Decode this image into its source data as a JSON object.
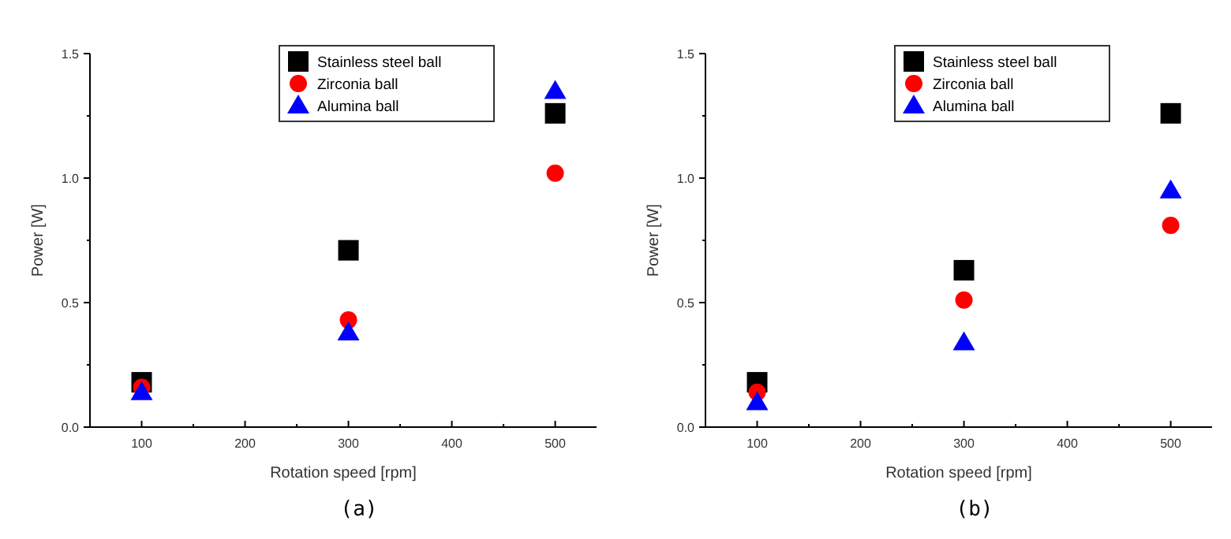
{
  "chart_data": [
    {
      "type": "scatter",
      "x": [
        100,
        300,
        500
      ],
      "xlabel": "Rotation speed [rpm]",
      "ylabel": "Power [W]",
      "xlim": [
        50,
        540
      ],
      "ylim": [
        0,
        1.5
      ],
      "xticks": [
        100,
        {
          "value": 150,
          "label": null
        },
        200,
        {
          "value": 250,
          "label": null
        },
        300,
        {
          "value": 350,
          "label": null
        },
        400,
        {
          "value": 450,
          "label": null
        },
        500
      ],
      "yticks": [
        "0.0",
        {
          "value": 0.25,
          "label": null
        },
        {
          "value": 0.5,
          "label": "0.5"
        },
        {
          "value": 0.75,
          "label": null
        },
        {
          "value": 1,
          "label": "1.0"
        },
        {
          "value": 1.25,
          "label": null
        },
        {
          "value": 1.5,
          "label": "1.5"
        }
      ],
      "legend": "top right",
      "grid": false,
      "annotations": [
        "(a)"
      ],
      "series": [
        {
          "name": "Stainless steel ball",
          "color": "#000000",
          "marker": "square",
          "values": [
            0.18,
            0.71,
            1.26
          ]
        },
        {
          "name": "Zirconia ball",
          "color": "#ff0000",
          "marker": "circle",
          "values": [
            0.16,
            0.43,
            1.02
          ]
        },
        {
          "name": "Alumina ball",
          "color": "#0000ff",
          "marker": "triangle",
          "values": [
            0.14,
            0.38,
            1.35
          ]
        }
      ]
    },
    {
      "type": "scatter",
      "x": [
        100,
        300,
        500
      ],
      "xlabel": "Rotation speed [rpm]",
      "ylabel": "Power [W]",
      "xlim": [
        50,
        540
      ],
      "ylim": [
        0,
        1.5
      ],
      "xticks": [
        100,
        {
          "value": 150,
          "label": null
        },
        200,
        {
          "value": 250,
          "label": null
        },
        300,
        {
          "value": 350,
          "label": null
        },
        400,
        {
          "value": 450,
          "label": null
        },
        500
      ],
      "yticks": [
        "0.0",
        {
          "value": 0.25,
          "label": null
        },
        {
          "value": 0.5,
          "label": "0.5"
        },
        {
          "value": 0.75,
          "label": null
        },
        {
          "value": 1,
          "label": "1.0"
        },
        {
          "value": 1.25,
          "label": null
        },
        {
          "value": 1.5,
          "label": "1.5"
        }
      ],
      "legend": "top right",
      "grid": false,
      "annotations": [
        "(b)"
      ],
      "series": [
        {
          "name": "Stainless steel ball",
          "color": "#000000",
          "marker": "square",
          "values": [
            0.18,
            0.63,
            1.26
          ]
        },
        {
          "name": "Zirconia ball",
          "color": "#ff0000",
          "marker": "circle",
          "values": [
            0.14,
            0.51,
            0.81
          ]
        },
        {
          "name": "Alumina ball",
          "color": "#0000ff",
          "marker": "triangle",
          "values": [
            0.1,
            0.34,
            0.95
          ]
        }
      ]
    }
  ]
}
